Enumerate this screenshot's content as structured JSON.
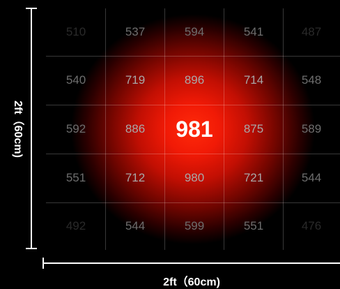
{
  "chart_data": {
    "type": "heatmap",
    "title": "",
    "xlabel": "2ft（60cm)",
    "ylabel": "2ft（60cm)",
    "rows": [
      [
        "510",
        "537",
        "594",
        "541",
        "487"
      ],
      [
        "540",
        "719",
        "896",
        "714",
        "548"
      ],
      [
        "592",
        "886",
        "981",
        "875",
        "589"
      ],
      [
        "551",
        "712",
        "980",
        "721",
        "544"
      ],
      [
        "492",
        "544",
        "599",
        "551",
        "476"
      ]
    ],
    "peak": "981",
    "colors": {
      "center": "#ff2a0a",
      "edge": "#000000",
      "value_text": "#a8a8a8",
      "peak_text": "#ffffff",
      "axis": "#ffffff"
    }
  }
}
